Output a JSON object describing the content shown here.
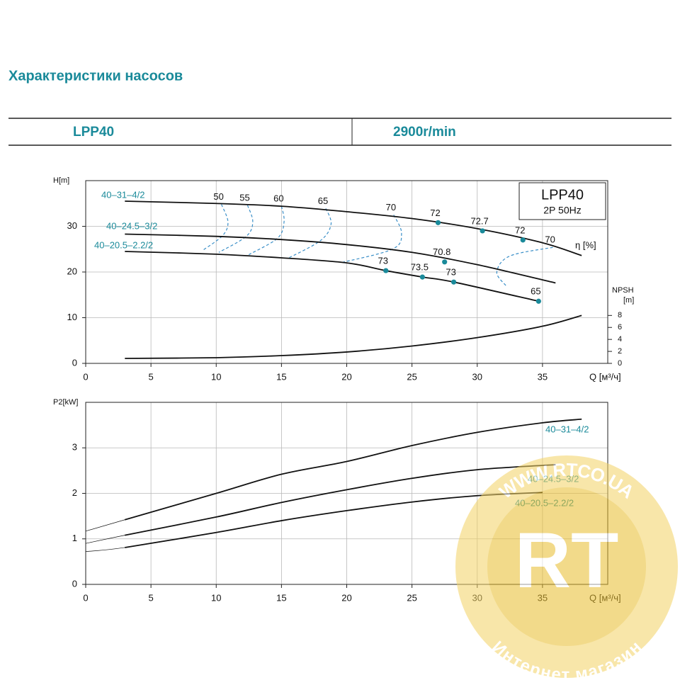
{
  "header": {
    "title": "Характеристики насосов",
    "model": "LPP40",
    "speed": "2900r/min"
  },
  "watermark": {
    "logo": "RT",
    "top": "WWW.RTCO.UA",
    "bottom": "Интернет магазин"
  },
  "chart_data": [
    {
      "type": "line",
      "legend_title": "LPP40",
      "subtitle": "2P  50Hz",
      "xlabel": "Q [м³/ч]",
      "ylabel": "H[m]",
      "y2label": [
        "NPSH",
        "[m]"
      ],
      "eta_label": "η [%]",
      "xlim": [
        0,
        40
      ],
      "xticks": [
        0,
        5,
        10,
        15,
        20,
        25,
        30,
        35
      ],
      "ylim": [
        0,
        40
      ],
      "yticks": [
        0,
        10,
        20,
        30
      ],
      "y2lim": [
        0,
        30.5
      ],
      "y2ticks": [
        0,
        2,
        4,
        6,
        8
      ],
      "grid": true,
      "label_color": "#1a8a9a",
      "dot_color": "#1a8a9a",
      "contour_color": "#3a8fc8",
      "series": [
        {
          "name": "40–31–4/2",
          "color": "#111111",
          "x": [
            3,
            10,
            15,
            20,
            25,
            30,
            35,
            38
          ],
          "values": [
            35.5,
            35,
            34.4,
            33.2,
            31.7,
            29.5,
            26.4,
            23.6
          ]
        },
        {
          "name": "40–24.5–3/2",
          "color": "#111111",
          "x": [
            3,
            10,
            15,
            20,
            25,
            30,
            36
          ],
          "values": [
            28.3,
            27.8,
            27.1,
            26,
            24.3,
            21.6,
            17.6
          ]
        },
        {
          "name": "40–20.5–2.2/2",
          "color": "#111111",
          "x": [
            3,
            10,
            15,
            20,
            23,
            25.8,
            28.2,
            34.7
          ],
          "values": [
            24.5,
            23.9,
            23.1,
            22,
            20.3,
            18.9,
            17.8,
            13.6
          ]
        }
      ],
      "npsh": {
        "axis": "y2",
        "color": "#111111",
        "x": [
          3,
          10,
          15,
          20,
          25,
          30,
          35,
          38
        ],
        "values": [
          0.83,
          0.95,
          1.3,
          1.9,
          2.9,
          4.3,
          6.2,
          8
        ]
      },
      "efficiency_points": [
        {
          "x": 27,
          "y": 30.8,
          "eta": 72
        },
        {
          "x": 30.4,
          "y": 29,
          "eta": 72.7
        },
        {
          "x": 33.5,
          "y": 27,
          "eta": 72
        },
        {
          "x": 27.5,
          "y": 22.2,
          "eta": 70.8
        },
        {
          "x": 23,
          "y": 20.3,
          "eta": 73
        },
        {
          "x": 25.8,
          "y": 18.9,
          "eta": 73.5
        },
        {
          "x": 28.2,
          "y": 17.8,
          "eta": 73
        },
        {
          "x": 34.7,
          "y": 13.6,
          "eta": 65
        }
      ],
      "efficiency_contours": [
        {
          "eta": 50,
          "x": [
            10.4,
            10.9,
            10.5,
            9.0
          ],
          "y": [
            34.8,
            31,
            28,
            24.8
          ]
        },
        {
          "eta": 55,
          "x": [
            12.4,
            12.8,
            12.3,
            10.2
          ],
          "y": [
            34.6,
            31,
            27.8,
            24.3
          ]
        },
        {
          "eta": 60,
          "x": [
            15,
            15.2,
            14.7,
            12.5
          ],
          "y": [
            34.4,
            31,
            27.4,
            23.8
          ]
        },
        {
          "eta": 65,
          "x": [
            18.4,
            18.8,
            18,
            15.5
          ],
          "y": [
            33.9,
            30.5,
            26.9,
            23
          ]
        },
        {
          "eta": 70,
          "x": [
            23.6,
            24.2,
            23.5,
            19.5
          ],
          "y": [
            32.5,
            28.5,
            25,
            22
          ]
        },
        {
          "eta": 70,
          "x": [
            35.8,
            32.5,
            31.5,
            32.2
          ],
          "y": [
            25.4,
            23.5,
            20,
            17
          ]
        }
      ]
    },
    {
      "type": "line",
      "xlabel": "Q [м³/ч]",
      "ylabel": "P2[kW]",
      "xlim": [
        0,
        40
      ],
      "xticks": [
        0,
        5,
        10,
        15,
        20,
        25,
        30,
        35
      ],
      "ylim": [
        0,
        4
      ],
      "yticks": [
        0,
        1,
        2,
        3
      ],
      "grid": true,
      "label_color": "#1a8a9a",
      "series": [
        {
          "name": "40–31–4/2",
          "color": "#111111",
          "x": [
            0,
            3,
            10,
            15,
            20,
            25,
            30,
            35,
            38
          ],
          "values": [
            1.17,
            1.42,
            2.0,
            2.42,
            2.7,
            3.05,
            3.34,
            3.55,
            3.63
          ]
        },
        {
          "name": "40–24.5–3/2",
          "color": "#111111",
          "x": [
            0,
            3,
            10,
            15,
            20,
            25,
            30,
            36
          ],
          "values": [
            0.9,
            1.08,
            1.48,
            1.8,
            2.08,
            2.33,
            2.52,
            2.63
          ]
        },
        {
          "name": "40–20.5–2.2/2",
          "color": "#111111",
          "x": [
            0,
            3,
            10,
            15,
            20,
            25,
            30,
            35
          ],
          "values": [
            0.72,
            0.81,
            1.14,
            1.4,
            1.62,
            1.81,
            1.95,
            2.02
          ]
        }
      ]
    }
  ]
}
